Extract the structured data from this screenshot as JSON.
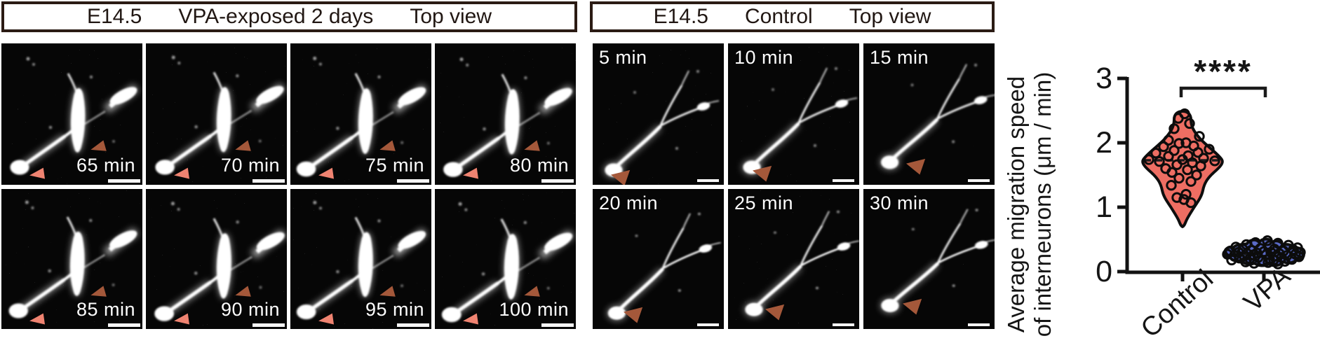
{
  "vpa_block": {
    "header": {
      "stage": "E14.5",
      "condition": "VPA-exposed 2 days",
      "view": "Top view"
    },
    "panels": [
      {
        "time": "65 min"
      },
      {
        "time": "70 min"
      },
      {
        "time": "75 min"
      },
      {
        "time": "80 min"
      },
      {
        "time": "85 min"
      },
      {
        "time": "90 min"
      },
      {
        "time": "95 min"
      },
      {
        "time": "100 min"
      }
    ]
  },
  "control_block": {
    "header": {
      "stage": "E14.5",
      "condition": "Control",
      "view": "Top view"
    },
    "panels": [
      {
        "time": "5 min"
      },
      {
        "time": "10 min"
      },
      {
        "time": "15 min"
      },
      {
        "time": "20 min"
      },
      {
        "time": "25 min"
      },
      {
        "time": "30 min"
      }
    ]
  },
  "colors": {
    "arrowhead_brown": "#a4583a",
    "arrowhead_pink": "#ef8371",
    "control_violin": "#ee6e63",
    "vpa_violin": "#5b6bc7",
    "header_border": "#2b1b14"
  },
  "chart_data": {
    "type": "violin",
    "ylabel_line1": "Average migration speed",
    "ylabel_line2": "of interneurons (μm / min)",
    "ylim": [
      0,
      3
    ],
    "yticks": [
      "0",
      "1",
      "2",
      "3"
    ],
    "categories": [
      "Control",
      "VPA"
    ],
    "significance": "****",
    "grid": false,
    "series": [
      {
        "name": "Control",
        "color": "#ee6e63",
        "median": 1.73,
        "points": [
          [
            3,
            2.45
          ],
          [
            -6,
            2.38
          ],
          [
            10,
            2.3
          ],
          [
            -12,
            2.22
          ],
          [
            24,
            2.1
          ],
          [
            -20,
            2.04
          ],
          [
            5,
            2.0
          ],
          [
            -5,
            1.99
          ],
          [
            16,
            1.95
          ],
          [
            -27,
            1.94
          ],
          [
            38,
            1.9
          ],
          [
            -12,
            1.88
          ],
          [
            22,
            1.85
          ],
          [
            -38,
            1.84
          ],
          [
            8,
            1.8
          ],
          [
            -20,
            1.79
          ],
          [
            30,
            1.76
          ],
          [
            -48,
            1.74
          ],
          [
            0,
            1.74
          ],
          [
            46,
            1.72
          ],
          [
            -33,
            1.71
          ],
          [
            14,
            1.69
          ],
          [
            -8,
            1.66
          ],
          [
            26,
            1.64
          ],
          [
            -24,
            1.6
          ],
          [
            7,
            1.58
          ],
          [
            -15,
            1.54
          ],
          [
            20,
            1.5
          ],
          [
            -5,
            1.45
          ],
          [
            12,
            1.4
          ],
          [
            -16,
            1.34
          ],
          [
            5,
            1.2
          ],
          [
            -8,
            1.15
          ],
          [
            2,
            1.12
          ],
          [
            12,
            1.07
          ]
        ]
      },
      {
        "name": "VPA",
        "color": "#5b6bc7",
        "median": 0.27,
        "points": [
          [
            5,
            0.48
          ],
          [
            -12,
            0.45
          ],
          [
            20,
            0.44
          ],
          [
            -25,
            0.42
          ],
          [
            35,
            0.41
          ],
          [
            8,
            0.4
          ],
          [
            -40,
            0.38
          ],
          [
            48,
            0.37
          ],
          [
            -5,
            0.36
          ],
          [
            15,
            0.35
          ],
          [
            -30,
            0.35
          ],
          [
            42,
            0.34
          ],
          [
            -18,
            0.33
          ],
          [
            28,
            0.32
          ],
          [
            -48,
            0.32
          ],
          [
            0,
            0.31
          ],
          [
            52,
            0.3
          ],
          [
            -36,
            0.3
          ],
          [
            10,
            0.3
          ],
          [
            -10,
            0.29
          ],
          [
            22,
            0.28
          ],
          [
            -24,
            0.28
          ],
          [
            45,
            0.27
          ],
          [
            -52,
            0.27
          ],
          [
            3,
            0.26
          ],
          [
            -15,
            0.26
          ],
          [
            33,
            0.25
          ],
          [
            -42,
            0.25
          ],
          [
            17,
            0.24
          ],
          [
            -28,
            0.24
          ],
          [
            50,
            0.23
          ],
          [
            -8,
            0.22
          ],
          [
            25,
            0.22
          ],
          [
            -35,
            0.21
          ],
          [
            8,
            0.2
          ],
          [
            -20,
            0.2
          ],
          [
            40,
            0.19
          ],
          [
            -46,
            0.18
          ],
          [
            14,
            0.18
          ],
          [
            -2,
            0.17
          ],
          [
            30,
            0.16
          ],
          [
            -26,
            0.15
          ],
          [
            6,
            0.14
          ],
          [
            -14,
            0.13
          ],
          [
            20,
            0.12
          ]
        ]
      }
    ]
  }
}
